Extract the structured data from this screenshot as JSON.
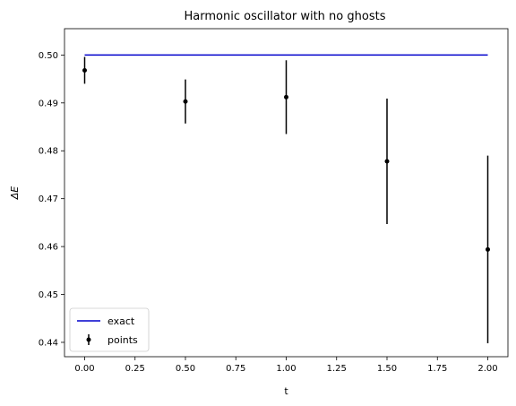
{
  "chart_data": {
    "type": "scatter",
    "title": "Harmonic oscillator with no ghosts",
    "xlabel": "t",
    "ylabel": "ΔE",
    "xlim": [
      -0.1,
      2.1
    ],
    "ylim": [
      0.437,
      0.5055
    ],
    "xticks": [
      0.0,
      0.25,
      0.5,
      0.75,
      1.0,
      1.25,
      1.5,
      1.75,
      2.0
    ],
    "xtick_labels": [
      "0.00",
      "0.25",
      "0.50",
      "0.75",
      "1.00",
      "1.25",
      "1.50",
      "1.75",
      "2.00"
    ],
    "yticks": [
      0.44,
      0.45,
      0.46,
      0.47,
      0.48,
      0.49,
      0.5
    ],
    "ytick_labels": [
      "0.44",
      "0.45",
      "0.46",
      "0.47",
      "0.48",
      "0.49",
      "0.50"
    ],
    "grid": false,
    "legend_position": "lower-left",
    "series": [
      {
        "name": "exact",
        "kind": "line",
        "color": "#0000cc",
        "x": [
          0.0,
          2.0
        ],
        "y": [
          0.5,
          0.5
        ]
      },
      {
        "name": "points",
        "kind": "errorbar",
        "color": "#000000",
        "x": [
          0.0,
          0.5,
          1.0,
          1.5,
          2.0
        ],
        "y": [
          0.4968,
          0.4903,
          0.4912,
          0.4778,
          0.4594
        ],
        "yerr": [
          0.0028,
          0.0046,
          0.0077,
          0.0131,
          0.0196
        ]
      }
    ]
  }
}
